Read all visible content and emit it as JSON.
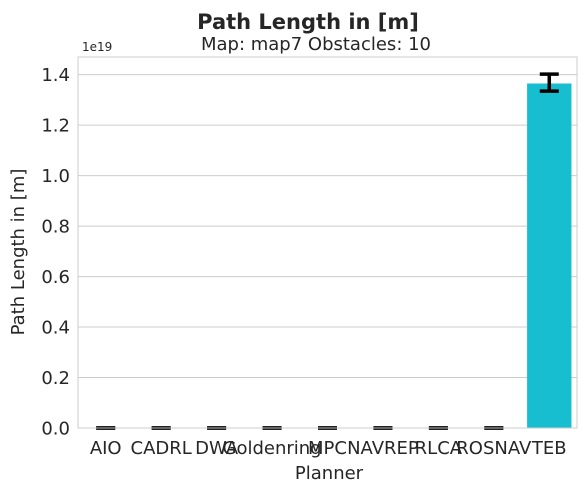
{
  "title": "Path Length in [m]",
  "subtitle": "Map: map7 Obstacles: 10",
  "chart_data": {
    "type": "bar",
    "title": "Path Length in [m]",
    "subtitle": "Map: map7 Obstacles: 10",
    "xlabel": "Planner",
    "ylabel": "Path Length in [m]",
    "offset_label": "1e19",
    "scale": 1e+19,
    "categories": [
      "AIO",
      "CADRL",
      "DWA",
      "Goldenring",
      "MPC",
      "NAVREP",
      "RLCA",
      "ROSNAV",
      "TEB"
    ],
    "values": [
      0,
      0,
      0,
      0,
      0,
      0,
      0,
      0,
      1.365e+19
    ],
    "error_low": [
      0,
      0,
      0,
      0,
      0,
      0,
      0,
      0,
      1.335e+19
    ],
    "error_high": [
      0,
      0,
      0,
      0,
      0,
      0,
      0,
      0,
      1.402e+19
    ],
    "ylim": [
      0,
      1.47e+19
    ],
    "yticks": [
      0,
      2e+18,
      4e+18,
      6e+18,
      8e+18,
      1e+19,
      1.2e+19,
      1.4e+19
    ],
    "ytick_labels": [
      "0.0",
      "0.2",
      "0.4",
      "0.6",
      "0.8",
      "1.0",
      "1.2",
      "1.4"
    ],
    "grid": "horizontal",
    "bar_color": "#17becf",
    "error_color": "#000000"
  }
}
